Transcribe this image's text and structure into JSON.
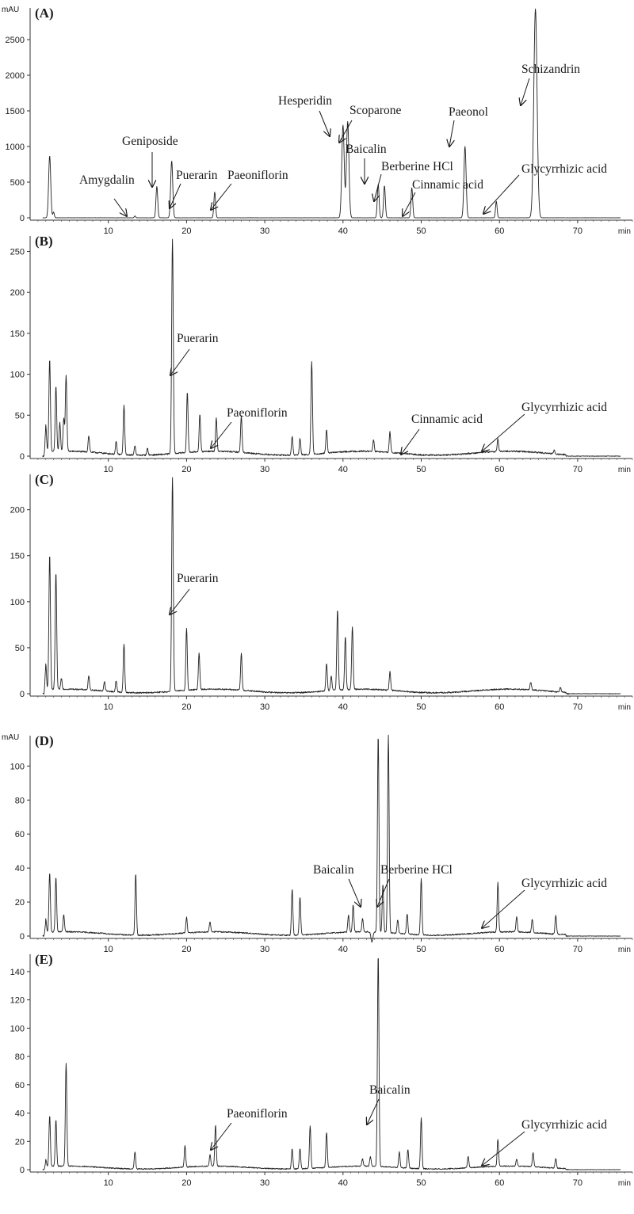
{
  "chart_data": [
    {
      "type": "line",
      "panel": "(A)",
      "ylabel": "mAU",
      "xlabel": "min",
      "xlim": [
        0,
        77
      ],
      "ylim": [
        -100,
        2900
      ],
      "yticks": [
        0,
        500,
        1000,
        1500,
        2000,
        2500
      ],
      "xticks": [
        10,
        20,
        30,
        40,
        50,
        60,
        70
      ],
      "baseline_noise": 2,
      "peaks": [
        [
          2.5,
          870
        ],
        [
          3.0,
          80
        ],
        [
          13.4,
          25
        ],
        [
          16.2,
          440
        ],
        [
          18.1,
          800
        ],
        [
          23.6,
          360
        ],
        [
          40.0,
          1300
        ],
        [
          40.6,
          1350
        ],
        [
          44.5,
          470
        ],
        [
          45.3,
          450
        ],
        [
          48.8,
          420
        ],
        [
          55.6,
          1000
        ],
        [
          59.6,
          230
        ],
        [
          64.6,
          2930
        ]
      ],
      "annotations": [
        {
          "text": "Amygdalin",
          "x": 13.4,
          "y": 25
        },
        {
          "text": "Geniposide",
          "x": 16.2,
          "y": 440
        },
        {
          "text": "Puerarin",
          "x": 18.2,
          "y": 120
        },
        {
          "text": "Paeoniflorin",
          "x": 23.8,
          "y": 100
        },
        {
          "text": "Hesperidin",
          "x": 40.0,
          "y": 1190
        },
        {
          "text": "Scoparone",
          "x": 40.8,
          "y": 1070
        },
        {
          "text": "Baicalin",
          "x": 44.5,
          "y": 490
        },
        {
          "text": "Berberine HCl",
          "x": 45.5,
          "y": 250
        },
        {
          "text": "Cinnamic acid",
          "x": 49.0,
          "y": 20
        },
        {
          "text": "Paeonol",
          "x": 55.6,
          "y": 1010
        },
        {
          "text": "Glycyrrhizic acid",
          "x": 59.8,
          "y": 40
        },
        {
          "text": "Schizandrin",
          "x": 64.7,
          "y": 1600
        }
      ]
    },
    {
      "type": "line",
      "panel": "(B)",
      "ylabel": "",
      "xlabel": "min",
      "xlim": [
        0,
        77
      ],
      "ylim": [
        -8,
        265
      ],
      "yticks": [
        0,
        50,
        100,
        150,
        200,
        250
      ],
      "xticks": [
        10,
        20,
        30,
        40,
        50,
        60,
        70
      ],
      "baseline_noise": 1.2,
      "peaks": [
        [
          2.0,
          33
        ],
        [
          2.5,
          113
        ],
        [
          3.3,
          80
        ],
        [
          3.8,
          35
        ],
        [
          4.3,
          40
        ],
        [
          4.6,
          93
        ],
        [
          7.5,
          20
        ],
        [
          11.0,
          15
        ],
        [
          12.0,
          60
        ],
        [
          13.4,
          12
        ],
        [
          15.0,
          8
        ],
        [
          18.2,
          262
        ],
        [
          20.1,
          73
        ],
        [
          21.7,
          45
        ],
        [
          23.8,
          40
        ],
        [
          27.0,
          45
        ],
        [
          33.5,
          23
        ],
        [
          34.5,
          20
        ],
        [
          36.0,
          113
        ],
        [
          37.9,
          28
        ],
        [
          43.9,
          14
        ],
        [
          46.0,
          25
        ],
        [
          59.8,
          15
        ],
        [
          67.0,
          5
        ]
      ],
      "annotations": [
        {
          "text": "Puerarin",
          "x": 18.4,
          "y": 110
        },
        {
          "text": "Paeoniflorin",
          "x": 24.0,
          "y": 12
        },
        {
          "text": "Cinnamic acid",
          "x": 49.2,
          "y": 5
        },
        {
          "text": "Glycyrrhizic acid",
          "x": 59.8,
          "y": 10
        }
      ]
    },
    {
      "type": "line",
      "panel": "(C)",
      "ylabel": "",
      "xlabel": "min",
      "xlim": [
        0,
        77
      ],
      "ylim": [
        -8,
        235
      ],
      "yticks": [
        0,
        50,
        100,
        150,
        200
      ],
      "xticks": [
        10,
        20,
        30,
        40,
        50,
        60,
        70
      ],
      "baseline_noise": 1,
      "peaks": [
        [
          2.0,
          28
        ],
        [
          2.5,
          147
        ],
        [
          3.3,
          127
        ],
        [
          4.0,
          12
        ],
        [
          7.5,
          15
        ],
        [
          9.5,
          10
        ],
        [
          11.0,
          12
        ],
        [
          12.0,
          52
        ],
        [
          18.2,
          233
        ],
        [
          20.0,
          67
        ],
        [
          21.6,
          40
        ],
        [
          27.0,
          40
        ],
        [
          37.9,
          30
        ],
        [
          38.5,
          16
        ],
        [
          39.3,
          88
        ],
        [
          40.3,
          58
        ],
        [
          41.2,
          68
        ],
        [
          46.0,
          20
        ],
        [
          64.0,
          8
        ],
        [
          67.8,
          5
        ]
      ],
      "annotations": [
        {
          "text": "Puerarin",
          "x": 18.4,
          "y": 140
        }
      ]
    },
    {
      "type": "line",
      "panel": "(D)",
      "ylabel": "mAU",
      "xlabel": "min",
      "xlim": [
        0,
        77
      ],
      "ylim": [
        -10,
        116
      ],
      "yticks": [
        0,
        20,
        40,
        60,
        80,
        100
      ],
      "xticks": [
        10,
        20,
        30,
        40,
        50,
        60,
        70
      ],
      "baseline_noise": 0.5,
      "peaks": [
        [
          2.0,
          8
        ],
        [
          2.5,
          35
        ],
        [
          3.3,
          32
        ],
        [
          4.3,
          10
        ],
        [
          13.5,
          36
        ],
        [
          20.0,
          9
        ],
        [
          23.0,
          6
        ],
        [
          33.5,
          27
        ],
        [
          34.5,
          22
        ],
        [
          40.7,
          10
        ],
        [
          41.3,
          16
        ],
        [
          42.5,
          8
        ],
        [
          43.7,
          -6
        ],
        [
          44.5,
          116
        ],
        [
          45.1,
          28
        ],
        [
          45.8,
          116
        ],
        [
          47.0,
          8
        ],
        [
          48.2,
          12
        ],
        [
          50.0,
          33
        ],
        [
          59.8,
          29
        ],
        [
          62.2,
          9
        ],
        [
          64.2,
          8
        ],
        [
          67.2,
          11
        ]
      ],
      "annotations": [
        {
          "text": "Baicalin",
          "x": 44.2,
          "y": 18
        },
        {
          "text": "Berberine HCl",
          "x": 46.3,
          "y": 18
        },
        {
          "text": "Glycyrrhizic acid",
          "x": 59.9,
          "y": 9
        }
      ]
    },
    {
      "type": "line",
      "panel": "(E)",
      "ylabel": "",
      "xlabel": "min",
      "xlim": [
        0,
        77
      ],
      "ylim": [
        -4,
        150
      ],
      "yticks": [
        0,
        20,
        40,
        60,
        80,
        100,
        120,
        140
      ],
      "xticks": [
        10,
        20,
        30,
        40,
        50,
        60,
        70
      ],
      "baseline_noise": 0.5,
      "peaks": [
        [
          2.0,
          5
        ],
        [
          2.5,
          36
        ],
        [
          3.3,
          33
        ],
        [
          4.6,
          73
        ],
        [
          13.4,
          12
        ],
        [
          19.8,
          15
        ],
        [
          23.0,
          8
        ],
        [
          23.7,
          29
        ],
        [
          33.5,
          14
        ],
        [
          34.5,
          14
        ],
        [
          35.8,
          30
        ],
        [
          37.9,
          25
        ],
        [
          42.5,
          5
        ],
        [
          43.5,
          7
        ],
        [
          44.5,
          150
        ],
        [
          47.2,
          11
        ],
        [
          48.3,
          13
        ],
        [
          50.0,
          36
        ],
        [
          56.0,
          8
        ],
        [
          59.8,
          19
        ],
        [
          62.2,
          5
        ],
        [
          64.3,
          10
        ],
        [
          67.2,
          7
        ]
      ],
      "annotations": [
        {
          "text": "Paeoniflorin",
          "x": 23.9,
          "y": 14
        },
        {
          "text": "Baicalin",
          "x": 44.8,
          "y": 58
        },
        {
          "text": "Glycyrrhizic acid",
          "x": 59.8,
          "y": 8
        }
      ]
    }
  ]
}
